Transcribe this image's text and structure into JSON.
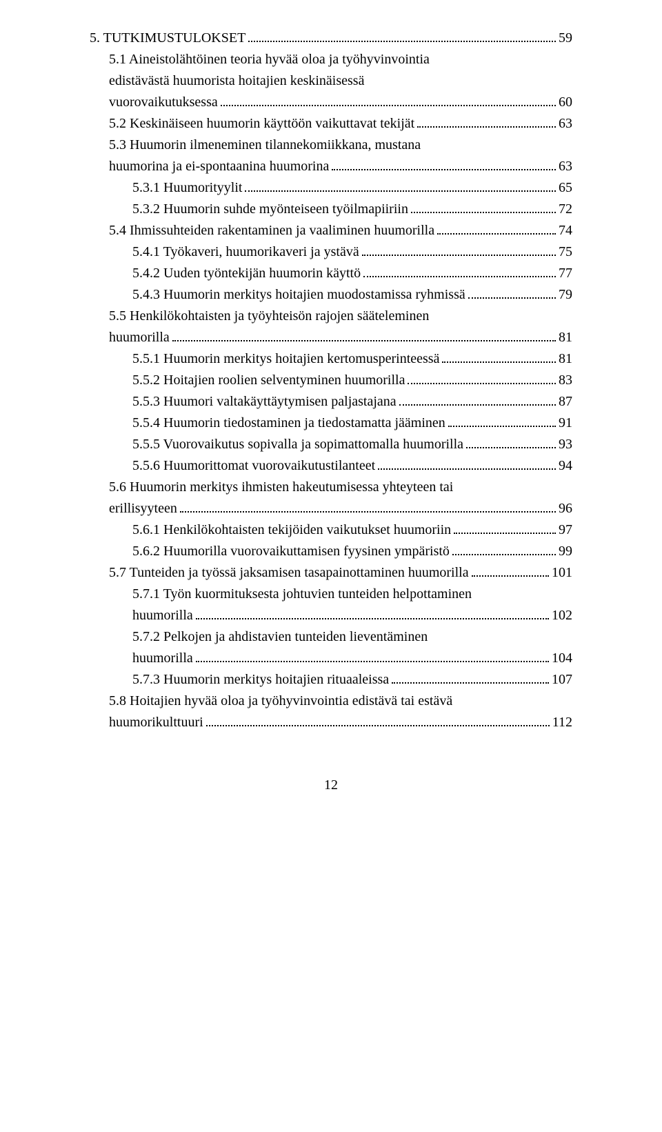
{
  "toc": {
    "items": [
      {
        "level": 0,
        "text": "5. TUTKIMUSTULOKSET",
        "page": "59"
      },
      {
        "level": 1,
        "text": "5.1 Aineistolähtöinen teoria hyvää oloa ja työhyvinvointia",
        "cont": "edistävästä huumorista hoitajien keskinäisessä",
        "cont2": "vuorovaikutuksessa",
        "page": "60"
      },
      {
        "level": 1,
        "text": "5.2 Keskinäiseen huumorin käyttöön vaikuttavat tekijät",
        "page": "63"
      },
      {
        "level": 1,
        "text": "5.3 Huumorin ilmeneminen tilannekomiikkana, mustana",
        "cont": "huumorina ja ei-spontaanina huumorina",
        "page": "63"
      },
      {
        "level": 2,
        "text": "5.3.1 Huumorityylit",
        "page": "65"
      },
      {
        "level": 2,
        "text": "5.3.2 Huumorin suhde myönteiseen työilmapiiriin",
        "page": "72"
      },
      {
        "level": 1,
        "text": "5.4 Ihmissuhteiden rakentaminen ja vaaliminen huumorilla",
        "page": "74"
      },
      {
        "level": 2,
        "text": "5.4.1 Työkaveri, huumorikaveri ja ystävä",
        "page": "75"
      },
      {
        "level": 2,
        "text": "5.4.2 Uuden työntekijän huumorin käyttö",
        "page": "77"
      },
      {
        "level": 2,
        "text": "5.4.3 Huumorin merkitys hoitajien muodostamissa ryhmissä",
        "page": "79"
      },
      {
        "level": 1,
        "text": "5.5 Henkilökohtaisten ja työyhteisön rajojen sääteleminen",
        "cont": "huumorilla",
        "page": "81"
      },
      {
        "level": 2,
        "text": "5.5.1 Huumorin merkitys hoitajien kertomusperinteessä",
        "page": "81"
      },
      {
        "level": 2,
        "text": "5.5.2 Hoitajien roolien selventyminen huumorilla",
        "page": "83"
      },
      {
        "level": 2,
        "text": "5.5.3 Huumori valtakäyttäytymisen paljastajana",
        "page": "87"
      },
      {
        "level": 2,
        "text": "5.5.4 Huumorin tiedostaminen ja tiedostamatta jääminen",
        "page": "91"
      },
      {
        "level": 2,
        "text": "5.5.5 Vuorovaikutus sopivalla ja sopimattomalla huumorilla",
        "page": "93"
      },
      {
        "level": 2,
        "text": "5.5.6 Huumorittomat vuorovaikutustilanteet",
        "page": "94"
      },
      {
        "level": 1,
        "text": "5.6 Huumorin merkitys ihmisten hakeutumisessa yhteyteen tai",
        "cont": "erillisyyteen",
        "page": "96"
      },
      {
        "level": 2,
        "text": "5.6.1 Henkilökohtaisten tekijöiden vaikutukset huumoriin",
        "page": "97"
      },
      {
        "level": 2,
        "text": "5.6.2 Huumorilla vuorovaikuttamisen fyysinen ympäristö",
        "page": "99"
      },
      {
        "level": 1,
        "text": "5.7 Tunteiden ja työssä jaksamisen tasapainottaminen huumorilla",
        "page": "101"
      },
      {
        "level": 2,
        "text": "5.7.1 Työn kuormituksesta johtuvien tunteiden helpottaminen",
        "cont": "huumorilla",
        "page": "102"
      },
      {
        "level": 2,
        "text": "5.7.2 Pelkojen ja ahdistavien tunteiden lieventäminen",
        "cont": "huumorilla",
        "page": "104"
      },
      {
        "level": 2,
        "text": "5.7.3 Huumorin merkitys hoitajien rituaaleissa",
        "page": "107"
      },
      {
        "level": 1,
        "text": "5.8 Hoitajien hyvää oloa ja työhyvinvointia edistävä tai estävä",
        "cont": "huumorikulttuuri",
        "page": "112"
      }
    ]
  },
  "page_number": "12"
}
